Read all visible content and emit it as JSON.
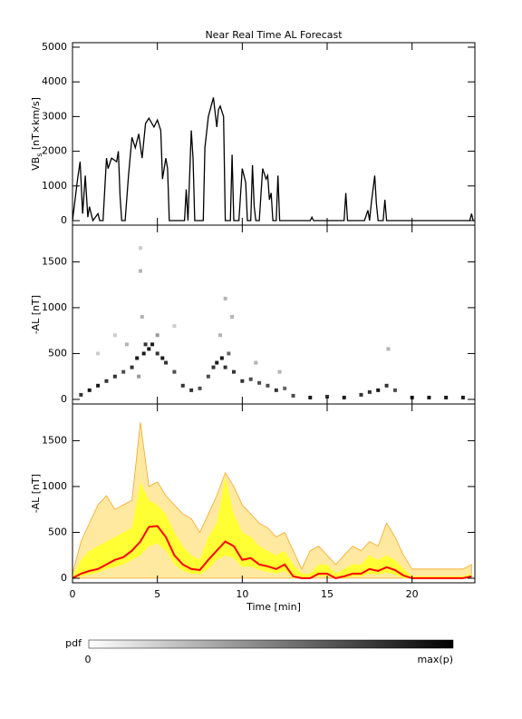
{
  "chart_data": [
    {
      "type": "line",
      "title": "Near Real Time AL Forecast",
      "ylabel": "VB",
      "ylabel_sub": "s",
      "ylabel_unit": " [nT×km/s]",
      "xlim": [
        0,
        23.7
      ],
      "xticks": [
        0,
        5,
        10,
        15,
        20
      ],
      "ylim": [
        -130,
        5130
      ],
      "yticks": [
        0,
        1000,
        2000,
        3000,
        4000,
        5000
      ],
      "color": "#000000",
      "x": [
        0,
        0.3,
        0.45,
        0.6,
        0.75,
        0.9,
        1.0,
        1.2,
        1.5,
        1.6,
        1.8,
        2.0,
        2.1,
        2.3,
        2.6,
        2.7,
        2.8,
        2.9,
        3.1,
        3.3,
        3.5,
        3.7,
        3.9,
        4.1,
        4.3,
        4.5,
        4.8,
        5.0,
        5.2,
        5.3,
        5.5,
        5.6,
        5.7,
        6.0,
        6.6,
        6.7,
        6.8,
        7.0,
        7.1,
        7.2,
        7.7,
        7.8,
        8.0,
        8.3,
        8.5,
        8.6,
        8.7,
        8.9,
        9.0,
        9.3,
        9.4,
        9.5,
        9.8,
        10.0,
        10.2,
        10.3,
        10.5,
        10.6,
        10.7,
        10.8,
        11.0,
        11.2,
        11.4,
        11.5,
        11.6,
        11.7,
        11.8,
        12.0,
        12.1,
        12.2,
        14.0,
        14.1,
        14.2,
        16.0,
        16.1,
        16.2,
        17.2,
        17.4,
        17.5,
        17.6,
        17.8,
        17.9,
        18.0,
        18.3,
        18.4,
        18.5,
        23.4,
        23.5,
        23.6,
        23.7
      ],
      "values": [
        0,
        1200,
        1700,
        200,
        1300,
        100,
        400,
        0,
        200,
        0,
        0,
        1800,
        1500,
        1800,
        1700,
        2000,
        700,
        0,
        0,
        1300,
        2400,
        2100,
        2500,
        1800,
        2800,
        2950,
        2700,
        2900,
        2600,
        1200,
        1800,
        1500,
        0,
        0,
        0,
        900,
        0,
        2600,
        1800,
        0,
        0,
        2100,
        3000,
        3550,
        2700,
        3200,
        3300,
        3000,
        0,
        0,
        1900,
        0,
        0,
        1500,
        1100,
        0,
        0,
        1600,
        400,
        0,
        0,
        1500,
        1200,
        1300,
        600,
        800,
        0,
        0,
        1300,
        0,
        0,
        100,
        0,
        0,
        800,
        0,
        0,
        300,
        0,
        500,
        1300,
        500,
        0,
        0,
        600,
        0,
        0,
        200,
        0,
        0
      ]
    },
    {
      "type": "scatter",
      "ylabel": "-AL [nT]",
      "xlim": [
        0,
        23.7
      ],
      "xticks": [
        0,
        5,
        10,
        15,
        20
      ],
      "ylim": [
        -50,
        1900
      ],
      "yticks": [
        0,
        500,
        1000,
        1500
      ],
      "x": [
        0.5,
        1,
        1.5,
        2,
        2.5,
        3,
        3.5,
        3.8,
        4,
        4,
        4.2,
        4.3,
        4.5,
        4.7,
        5,
        5,
        5.3,
        5.5,
        6,
        6.5,
        7,
        7.5,
        8,
        8.3,
        8.5,
        8.8,
        9,
        9,
        9.2,
        9.5,
        10,
        10.5,
        11,
        11.5,
        12,
        12.5,
        13,
        14,
        15,
        16,
        17,
        17.5,
        18,
        18.5,
        19,
        20,
        21,
        22,
        23,
        1.5,
        2.5,
        3.2,
        4.1,
        6,
        8.7,
        9.4,
        10.8,
        12.2,
        18.6,
        3.9
      ],
      "y": [
        50,
        100,
        150,
        200,
        250,
        300,
        350,
        450,
        1400,
        1650,
        500,
        600,
        550,
        600,
        500,
        700,
        450,
        400,
        300,
        150,
        100,
        120,
        250,
        350,
        400,
        450,
        350,
        1100,
        500,
        300,
        200,
        220,
        180,
        150,
        100,
        120,
        40,
        20,
        30,
        20,
        50,
        80,
        100,
        150,
        100,
        20,
        20,
        20,
        20,
        500,
        700,
        600,
        900,
        800,
        700,
        900,
        400,
        300,
        550,
        250
      ],
      "p": [
        0.8,
        0.9,
        0.9,
        0.8,
        0.8,
        0.7,
        0.8,
        0.9,
        0.3,
        0.2,
        0.9,
        0.8,
        0.9,
        0.9,
        0.8,
        0.4,
        0.9,
        0.8,
        0.7,
        0.8,
        0.8,
        0.7,
        0.7,
        0.8,
        0.9,
        0.9,
        0.8,
        0.3,
        0.6,
        0.8,
        0.8,
        0.7,
        0.7,
        0.7,
        0.8,
        0.6,
        0.7,
        0.9,
        0.8,
        0.9,
        0.8,
        0.8,
        0.9,
        0.8,
        0.7,
        0.9,
        0.9,
        0.9,
        0.9,
        0.2,
        0.2,
        0.3,
        0.3,
        0.2,
        0.3,
        0.3,
        0.3,
        0.3,
        0.3,
        0.4
      ]
    },
    {
      "type": "band",
      "ylabel": "-AL [nT]",
      "xlabel": "Time [min]",
      "xlim": [
        0,
        23.7
      ],
      "xticks": [
        0,
        5,
        10,
        15,
        20
      ],
      "ylim": [
        -50,
        1900
      ],
      "yticks": [
        0,
        500,
        1000,
        1500
      ],
      "color": "#ff0000",
      "inner_color": "#ffff33",
      "outer_color": "#ffe9a0",
      "outer_edge": "#f5a623",
      "x": [
        0,
        0.5,
        1,
        1.5,
        2,
        2.5,
        3,
        3.5,
        4,
        4.5,
        5,
        5.5,
        6,
        6.5,
        7,
        7.5,
        8,
        8.5,
        9,
        9.5,
        10,
        10.5,
        11,
        11.5,
        12,
        12.5,
        13,
        13.5,
        14,
        14.5,
        15,
        15.5,
        16,
        16.5,
        17,
        17.5,
        18,
        18.5,
        19,
        19.5,
        20,
        20.5,
        21,
        21.5,
        22,
        22.5,
        23,
        23.5
      ],
      "median": [
        0,
        50,
        80,
        100,
        150,
        200,
        230,
        300,
        400,
        560,
        570,
        450,
        250,
        150,
        100,
        90,
        200,
        300,
        400,
        350,
        200,
        220,
        150,
        130,
        100,
        150,
        20,
        0,
        0,
        50,
        50,
        0,
        20,
        50,
        50,
        100,
        80,
        120,
        90,
        30,
        0,
        0,
        0,
        0,
        0,
        0,
        0,
        20
      ],
      "inner_low": [
        0,
        20,
        40,
        60,
        100,
        120,
        150,
        200,
        250,
        350,
        380,
        300,
        150,
        80,
        50,
        40,
        100,
        200,
        250,
        220,
        120,
        130,
        90,
        70,
        50,
        80,
        0,
        0,
        0,
        20,
        20,
        0,
        0,
        20,
        20,
        50,
        40,
        60,
        40,
        0,
        0,
        0,
        0,
        0,
        0,
        0,
        0,
        0
      ],
      "inner_high": [
        20,
        200,
        300,
        350,
        400,
        450,
        500,
        550,
        1050,
        850,
        800,
        700,
        500,
        350,
        250,
        200,
        450,
        600,
        1100,
        700,
        500,
        450,
        350,
        300,
        250,
        300,
        150,
        50,
        50,
        150,
        150,
        50,
        100,
        150,
        150,
        250,
        200,
        250,
        200,
        100,
        20,
        20,
        20,
        20,
        20,
        20,
        20,
        50
      ],
      "outer_low": [
        0,
        0,
        0,
        0,
        0,
        0,
        0,
        0,
        0,
        0,
        0,
        0,
        0,
        0,
        0,
        0,
        0,
        0,
        0,
        0,
        0,
        0,
        0,
        0,
        0,
        0,
        0,
        0,
        0,
        0,
        0,
        0,
        0,
        0,
        0,
        0,
        0,
        0,
        0,
        0,
        0,
        0,
        0,
        0,
        0,
        0,
        0,
        0
      ],
      "outer_high": [
        50,
        400,
        600,
        800,
        900,
        750,
        800,
        850,
        1700,
        1000,
        1050,
        900,
        800,
        700,
        650,
        500,
        700,
        900,
        1150,
        1000,
        800,
        700,
        600,
        550,
        450,
        500,
        300,
        100,
        300,
        350,
        250,
        150,
        250,
        350,
        300,
        400,
        350,
        600,
        450,
        250,
        100,
        100,
        100,
        100,
        100,
        100,
        100,
        150
      ]
    }
  ],
  "colorbar": {
    "label": "pdf",
    "min_label": "0",
    "max_label": "max(p)"
  }
}
